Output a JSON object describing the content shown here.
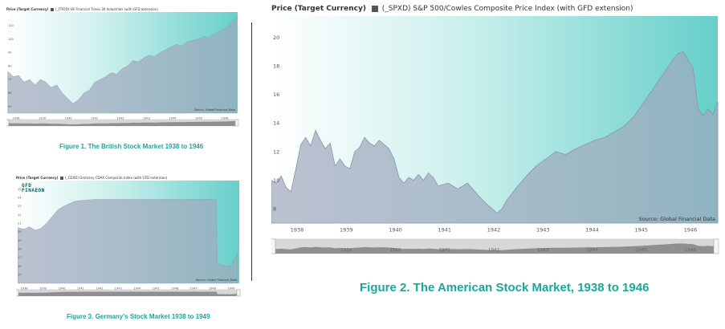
{
  "chart_data": [
    {
      "type": "area",
      "title": "UK Financial Times 30 Industrials (with GFD extension)",
      "header_label": "Price (Target Currency)",
      "series_code": "(_FTIOD) UK Financial Times 30 Industrials (with GFD extension)",
      "x_ticks": [
        "1938",
        "1939",
        "1940",
        "1941",
        "1942",
        "1943",
        "1944",
        "1945",
        "1946"
      ],
      "y_ticks": [
        "110",
        "100",
        "90",
        "80",
        "70",
        "60",
        "50"
      ],
      "ylim": [
        45,
        120
      ],
      "x": [
        1938.0,
        1938.2,
        1938.4,
        1938.6,
        1938.8,
        1939.0,
        1939.2,
        1939.4,
        1939.6,
        1939.8,
        1940.0,
        1940.2,
        1940.4,
        1940.6,
        1940.8,
        1941.0,
        1941.2,
        1941.4,
        1941.6,
        1941.8,
        1942.0,
        1942.2,
        1942.4,
        1942.6,
        1942.8,
        1943.0,
        1943.2,
        1943.4,
        1943.6,
        1943.8,
        1944.0,
        1944.2,
        1944.4,
        1944.6,
        1944.8,
        1945.0,
        1945.2,
        1945.4,
        1945.6,
        1945.8,
        1946.0,
        1946.2,
        1946.4
      ],
      "values": [
        76,
        72,
        73,
        68,
        70,
        66,
        70,
        68,
        64,
        66,
        60,
        56,
        52,
        55,
        60,
        62,
        68,
        70,
        72,
        75,
        74,
        78,
        80,
        84,
        83,
        86,
        88,
        87,
        90,
        92,
        94,
        96,
        95,
        98,
        99,
        100,
        102,
        101,
        104,
        106,
        108,
        112,
        116
      ],
      "source": "Source: Global Financial Data",
      "caption": "Figure 1. The British Stock Market 1938 to 1946"
    },
    {
      "type": "area",
      "title": "Germany CDAX Composite Index (with GFD extension)",
      "header_label": "Price (Target Currency)",
      "series_code": "(_CDXD) Germany CDAX Composite Index (with GFD extension)",
      "logo_text": "GFD FINAEON",
      "x_ticks": [
        "1938",
        "1939",
        "1940",
        "1941",
        "1942",
        "1943",
        "1944",
        "1945",
        "1946",
        "1947",
        "1948",
        "1949"
      ],
      "y_ticks": [
        "25",
        "24",
        "23",
        "22",
        "21",
        "20",
        "19",
        "18",
        "17",
        "16",
        "15"
      ],
      "ylim": [
        14,
        26
      ],
      "x": [
        1938.0,
        1938.3,
        1938.6,
        1938.9,
        1939.2,
        1939.5,
        1939.8,
        1940.1,
        1940.4,
        1940.7,
        1941.0,
        1941.5,
        1942.0,
        1943.0,
        1944.0,
        1945.0,
        1946.0,
        1947.0,
        1948.0,
        1948.4,
        1948.45,
        1948.6,
        1948.9,
        1949.2,
        1949.5
      ],
      "values": [
        20.5,
        20.3,
        20.6,
        20.2,
        20.4,
        21.0,
        21.8,
        22.6,
        23.0,
        23.3,
        23.6,
        23.7,
        23.8,
        23.8,
        23.8,
        23.8,
        23.8,
        23.8,
        23.8,
        23.8,
        16.5,
        16.2,
        16.0,
        16.1,
        17.5
      ],
      "source": "Source: Global Financial Data",
      "caption": "Figure 3.  Germany's Stock Market 1938 to 1949"
    },
    {
      "type": "area",
      "title": "S&P 500/Cowles Composite Price Index (with GFD extension)",
      "header_label": "Price (Target Currency)",
      "series_code": "(_SPXD) S&P 500/Cowles Composite Price Index (with GFD extension)",
      "x_ticks": [
        "1938",
        "1939",
        "1940",
        "1941",
        "1942",
        "1943",
        "1944",
        "1945",
        "1946"
      ],
      "navigator_ticks": [
        "1939",
        "1940",
        "1941",
        "1942",
        "1943",
        "1944",
        "1945",
        "1946"
      ],
      "y_ticks": [
        "20",
        "18",
        "16",
        "14",
        "12",
        "10",
        "8"
      ],
      "ylim": [
        7,
        21.5
      ],
      "x": [
        1937.6,
        1937.7,
        1937.8,
        1937.9,
        1938.0,
        1938.1,
        1938.2,
        1938.3,
        1938.4,
        1938.5,
        1938.6,
        1938.7,
        1938.8,
        1938.9,
        1939.0,
        1939.1,
        1939.2,
        1939.3,
        1939.4,
        1939.5,
        1939.6,
        1939.7,
        1939.8,
        1939.9,
        1940.0,
        1940.1,
        1940.2,
        1940.3,
        1940.4,
        1940.5,
        1940.6,
        1940.7,
        1940.8,
        1940.9,
        1941.0,
        1941.2,
        1941.4,
        1941.6,
        1941.8,
        1942.0,
        1942.1,
        1942.2,
        1942.3,
        1942.4,
        1942.6,
        1942.8,
        1943.0,
        1943.2,
        1943.4,
        1943.6,
        1943.8,
        1944.0,
        1944.2,
        1944.4,
        1944.6,
        1944.8,
        1945.0,
        1945.2,
        1945.4,
        1945.6,
        1945.8,
        1945.9,
        1946.0,
        1946.1,
        1946.2,
        1946.3,
        1946.4,
        1946.5,
        1946.6,
        1946.7
      ],
      "values": [
        10.0,
        9.8,
        10.3,
        9.5,
        9.2,
        10.8,
        12.5,
        13.0,
        12.4,
        13.5,
        12.8,
        12.2,
        12.6,
        11.0,
        11.5,
        11.0,
        10.8,
        12.0,
        12.3,
        13.0,
        12.6,
        12.4,
        12.8,
        12.5,
        12.2,
        11.5,
        10.2,
        9.8,
        10.2,
        10.0,
        10.4,
        10.0,
        10.5,
        10.2,
        9.6,
        9.8,
        9.4,
        9.8,
        9.0,
        8.3,
        8.0,
        7.7,
        8.0,
        8.6,
        9.5,
        10.3,
        11.0,
        11.5,
        12.0,
        11.8,
        12.2,
        12.5,
        12.8,
        13.0,
        13.4,
        13.8,
        14.5,
        15.5,
        16.5,
        17.5,
        18.5,
        18.9,
        19.0,
        18.4,
        17.8,
        15.0,
        14.5,
        15.0,
        14.6,
        15.5
      ],
      "source": "Source: Global Financial Data",
      "caption": "Figure 2.  The American Stock Market, 1938 to 1946"
    }
  ]
}
